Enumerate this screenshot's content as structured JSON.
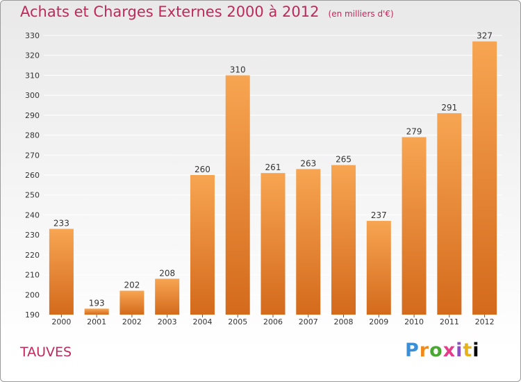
{
  "header": {
    "title": "Achats et Charges Externes 2000 à 2012",
    "subtitle": "(en milliers d'€)"
  },
  "footer": {
    "commune": "TAUVES",
    "logo": "Proxiti"
  },
  "colors": {
    "title": "#c0285a",
    "bar_top": "#f7a552",
    "bar_bottom": "#d46a1c",
    "grid": "#ffffff",
    "background_top": "#e9e9e9"
  },
  "chart_data": {
    "type": "bar",
    "title": "Achats et Charges Externes 2000 à 2012",
    "subtitle": "(en milliers d'€)",
    "categories": [
      "2000",
      "2001",
      "2002",
      "2003",
      "2004",
      "2005",
      "2006",
      "2007",
      "2008",
      "2009",
      "2010",
      "2011",
      "2012"
    ],
    "values": [
      233,
      193,
      202,
      208,
      260,
      310,
      261,
      263,
      265,
      237,
      279,
      291,
      327
    ],
    "ylim": [
      190,
      330
    ],
    "yticks": [
      190,
      200,
      210,
      220,
      230,
      240,
      250,
      260,
      270,
      280,
      290,
      300,
      310,
      320,
      330
    ],
    "xlabel": "",
    "ylabel": "",
    "grid": true,
    "legend": "none"
  }
}
